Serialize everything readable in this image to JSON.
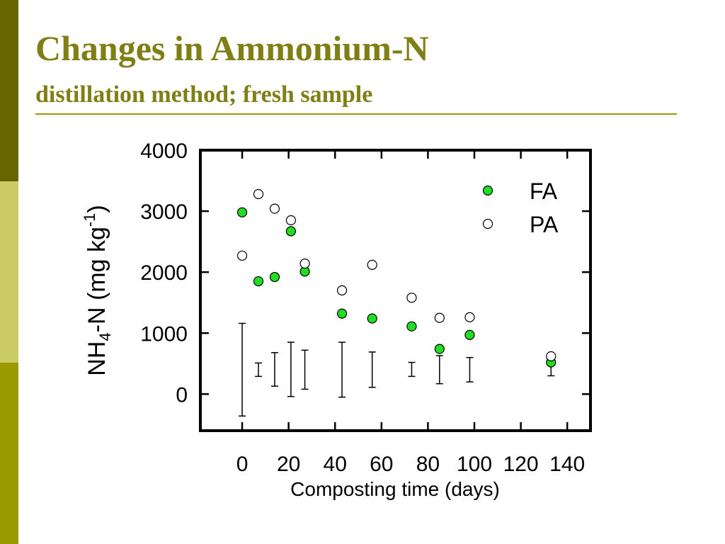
{
  "slide": {
    "title": "Changes in Ammonium-N",
    "subtitle": "distillation method; fresh sample",
    "colors": {
      "title": "#7f7f15",
      "rule": "#999900",
      "sidebar_top": "#666600",
      "sidebar_mid": "#cccc66",
      "sidebar_bottom": "#999900"
    }
  },
  "chart_data": {
    "type": "scatter",
    "xlabel": "Composting time (days)",
    "ylabel": {
      "prefix": "NH",
      "sub": "4",
      "middle": "-N (mg kg",
      "sup": "-1",
      "suffix": ")"
    },
    "xlim": [
      -18,
      150
    ],
    "ylim": [
      -600,
      4000
    ],
    "x_ticks": [
      0,
      20,
      40,
      60,
      80,
      100,
      120,
      140
    ],
    "y_ticks": [
      0,
      1000,
      2000,
      3000,
      4000
    ],
    "grid": false,
    "legend_position": "top-right",
    "series": [
      {
        "name": "FA",
        "marker": "filled-circle",
        "color": "#22dd22",
        "points": [
          {
            "x": 0,
            "y": 2980
          },
          {
            "x": 7,
            "y": 1850
          },
          {
            "x": 14,
            "y": 1920
          },
          {
            "x": 21,
            "y": 2670
          },
          {
            "x": 27,
            "y": 2010
          },
          {
            "x": 43,
            "y": 1320
          },
          {
            "x": 56,
            "y": 1240
          },
          {
            "x": 73,
            "y": 1110
          },
          {
            "x": 85,
            "y": 740
          },
          {
            "x": 98,
            "y": 970
          },
          {
            "x": 133,
            "y": 520
          }
        ]
      },
      {
        "name": "PA",
        "marker": "open-circle",
        "color": "#ffffff",
        "points": [
          {
            "x": 0,
            "y": 2270
          },
          {
            "x": 7,
            "y": 3280
          },
          {
            "x": 14,
            "y": 3040
          },
          {
            "x": 21,
            "y": 2850
          },
          {
            "x": 27,
            "y": 2140
          },
          {
            "x": 43,
            "y": 1700
          },
          {
            "x": 56,
            "y": 2120
          },
          {
            "x": 73,
            "y": 1580
          },
          {
            "x": 85,
            "y": 1250
          },
          {
            "x": 98,
            "y": 1260
          },
          {
            "x": 133,
            "y": 620
          }
        ]
      }
    ],
    "error_bars": [
      {
        "x": 0,
        "low": -360,
        "high": 1160
      },
      {
        "x": 7,
        "low": 290,
        "high": 510
      },
      {
        "x": 14,
        "low": 130,
        "high": 680
      },
      {
        "x": 21,
        "low": -40,
        "high": 850
      },
      {
        "x": 27,
        "low": 80,
        "high": 720
      },
      {
        "x": 43,
        "low": -50,
        "high": 850
      },
      {
        "x": 56,
        "low": 110,
        "high": 690
      },
      {
        "x": 73,
        "low": 290,
        "high": 520
      },
      {
        "x": 85,
        "low": 170,
        "high": 630
      },
      {
        "x": 98,
        "low": 200,
        "high": 600
      },
      {
        "x": 133,
        "low": 300,
        "high": 510
      }
    ]
  }
}
